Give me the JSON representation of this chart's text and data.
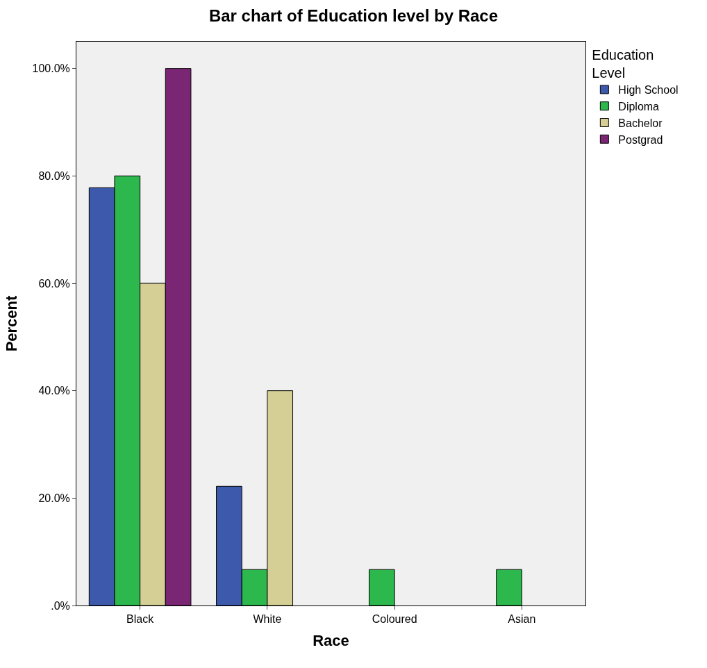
{
  "chart_data": {
    "type": "bar",
    "title": "Bar chart of Education level by Race",
    "xlabel": "Race",
    "ylabel": "Percent",
    "legend_title": "Education\nLevel",
    "legend": "top right",
    "grid": false,
    "categories": [
      "Black",
      "White",
      "Coloured",
      "Asian"
    ],
    "series": [
      {
        "name": "High School",
        "color": "#3d59ab",
        "values": [
          77.8,
          22.2,
          null,
          null
        ]
      },
      {
        "name": "Diploma",
        "color": "#2db84d",
        "values": [
          80,
          6.7,
          6.7,
          6.7
        ]
      },
      {
        "name": "Bachelor",
        "color": "#d5cf95",
        "values": [
          60,
          40,
          null,
          null
        ]
      },
      {
        "name": "Postgrad",
        "color": "#7b2674",
        "values": [
          100,
          null,
          null,
          null
        ]
      }
    ],
    "ylim": [
      0,
      105
    ],
    "yticks": [
      {
        "value": 0,
        "label": ".0%"
      },
      {
        "value": 20,
        "label": "20.0%"
      },
      {
        "value": 40,
        "label": "40.0%"
      },
      {
        "value": 60,
        "label": "60.0%"
      },
      {
        "value": 80,
        "label": "80.0%"
      },
      {
        "value": 100,
        "label": "100.0%"
      }
    ]
  }
}
